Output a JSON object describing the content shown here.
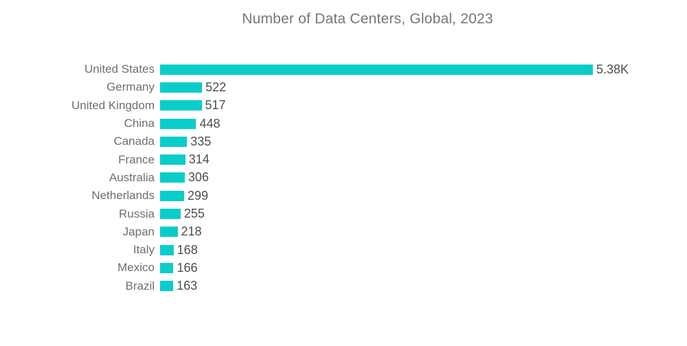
{
  "title": "Number of Data Centers, Global, 2023",
  "chart_data": {
    "type": "bar",
    "orientation": "horizontal",
    "title": "Number of Data Centers, Global, 2023",
    "categories": [
      "United States",
      "Germany",
      "United Kingdom",
      "China",
      "Canada",
      "France",
      "Australia",
      "Netherlands",
      "Russia",
      "Japan",
      "Italy",
      "Mexico",
      "Brazil"
    ],
    "values": [
      5380,
      522,
      517,
      448,
      335,
      314,
      306,
      299,
      255,
      218,
      168,
      166,
      163
    ],
    "value_labels": [
      "5.38K",
      "522",
      "517",
      "448",
      "335",
      "314",
      "306",
      "299",
      "255",
      "218",
      "168",
      "166",
      "163"
    ],
    "xlim": [
      0,
      5380
    ],
    "grid": false,
    "legend": "none",
    "axis_ticks": "none",
    "colors": {
      "bar": "#09CDC9",
      "category_label": "#6D6E71",
      "value_label": "#4D4D4D",
      "title": "#75767A",
      "background": "#FFFFFF"
    }
  }
}
